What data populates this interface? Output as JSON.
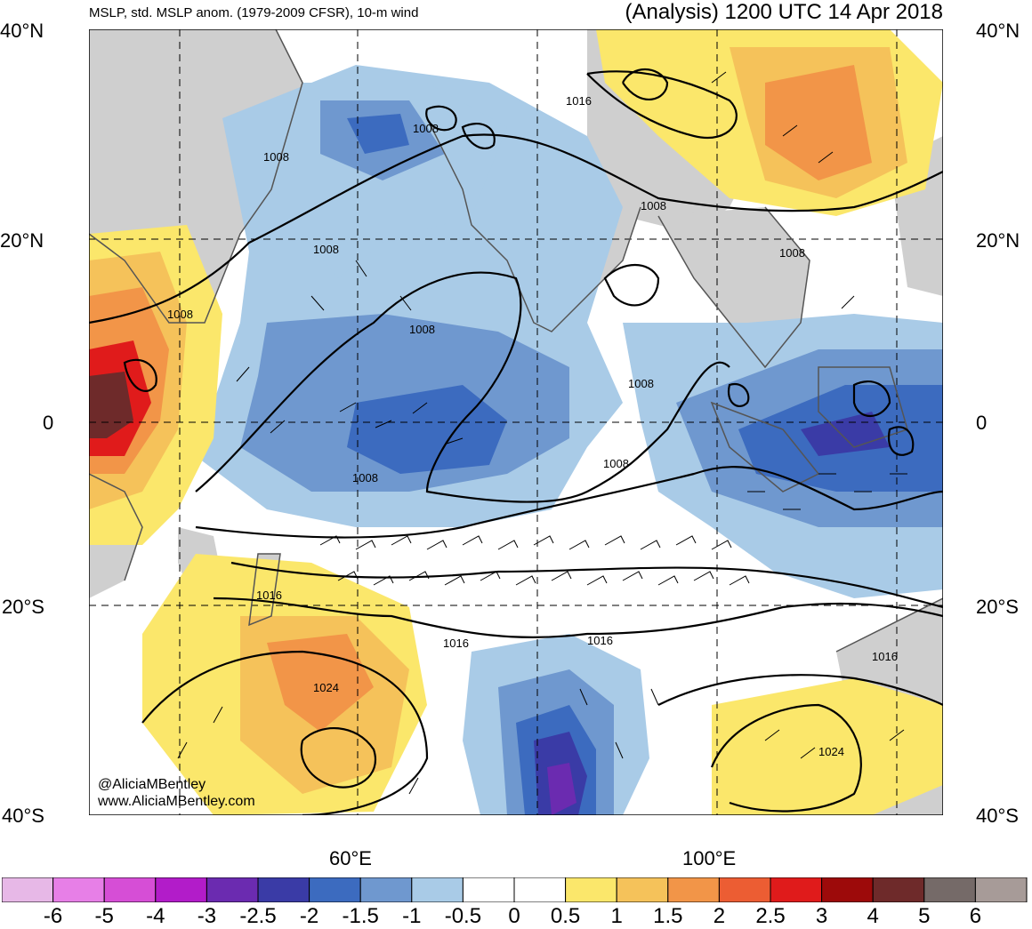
{
  "header": {
    "left_title": "MSLP, std. MSLP anom. (1979-2009 CFSR), 10-m wind",
    "right_title": "(Analysis) 1200 UTC 14 Apr 2018"
  },
  "map": {
    "lat_labels": [
      "40°N",
      "20°N",
      "0",
      "20°S",
      "40°S"
    ],
    "lon_labels": [
      "60°E",
      "100°E"
    ],
    "extent": {
      "lon": [
        40,
        132
      ],
      "lat": [
        -40,
        40
      ]
    },
    "colors": {
      "land": "#cfcfcf",
      "contour": "#000000",
      "coast": "#555555"
    },
    "isobar_labels": [
      "1016",
      "1008",
      "1008",
      "1008",
      "1008",
      "1008",
      "1008",
      "1008",
      "1008",
      "1008",
      "1016",
      "1016",
      "1016",
      "1016",
      "1024",
      "1016",
      "1024"
    ],
    "credit": [
      "@AliciaMBentley",
      "www.AliciaMBentley.com"
    ]
  },
  "colorbar": {
    "ticks": [
      "-6",
      "-5",
      "-4",
      "-3",
      "-2.5",
      "-2",
      "-1.5",
      "-1",
      "-0.5",
      "0",
      "0.5",
      "1",
      "1.5",
      "2",
      "2.5",
      "3",
      "4",
      "5",
      "6"
    ],
    "colors": [
      "#e7b8e7",
      "#e77fe7",
      "#d64ed6",
      "#b21cc9",
      "#6b2bb0",
      "#3a3ba6",
      "#3c6bbf",
      "#6f98cf",
      "#a9cbe7",
      "#ffffff",
      "#ffffff",
      "#fbe76b",
      "#f5c25a",
      "#f29548",
      "#ec5d33",
      "#e01b1b",
      "#9d0a0a",
      "#6e2a2a",
      "#756a68",
      "#a79b98"
    ]
  }
}
